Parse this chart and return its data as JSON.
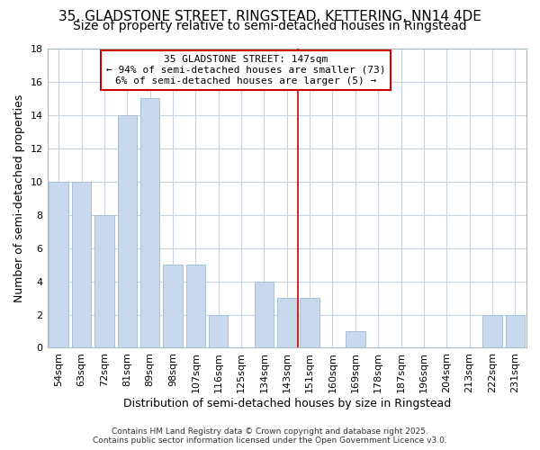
{
  "title1": "35, GLADSTONE STREET, RINGSTEAD, KETTERING, NN14 4DE",
  "title2": "Size of property relative to semi-detached houses in Ringstead",
  "categories": [
    "54sqm",
    "63sqm",
    "72sqm",
    "81sqm",
    "89sqm",
    "98sqm",
    "107sqm",
    "116sqm",
    "125sqm",
    "134sqm",
    "143sqm",
    "151sqm",
    "160sqm",
    "169sqm",
    "178sqm",
    "187sqm",
    "196sqm",
    "204sqm",
    "213sqm",
    "222sqm",
    "231sqm"
  ],
  "values": [
    10,
    10,
    8,
    14,
    15,
    5,
    5,
    2,
    0,
    4,
    3,
    3,
    0,
    1,
    0,
    0,
    0,
    0,
    0,
    2,
    2
  ],
  "bar_color": "#c8d8ed",
  "bar_edge_color": "#a8c0d8",
  "vline_index": 11,
  "vline_color": "#cc0000",
  "annotation_title": "35 GLADSTONE STREET: 147sqm",
  "annotation_line1": "← 94% of semi-detached houses are smaller (73)",
  "annotation_line2": "6% of semi-detached houses are larger (5) →",
  "annotation_box_color": "#ffffff",
  "annotation_box_edge_color": "#cc0000",
  "ylabel": "Number of semi-detached properties",
  "xlabel": "Distribution of semi-detached houses by size in Ringstead",
  "ylim": [
    0,
    18
  ],
  "yticks": [
    0,
    2,
    4,
    6,
    8,
    10,
    12,
    14,
    16,
    18
  ],
  "grid_color": "#c8d4e0",
  "bg_color": "#ffffff",
  "fig_bg_color": "#ffffff",
  "footer1": "Contains HM Land Registry data © Crown copyright and database right 2025.",
  "footer2": "Contains public sector information licensed under the Open Government Licence v3.0.",
  "title1_fontsize": 11,
  "title2_fontsize": 10,
  "tick_fontsize": 8,
  "axis_label_fontsize": 9,
  "annotation_fontsize": 8
}
